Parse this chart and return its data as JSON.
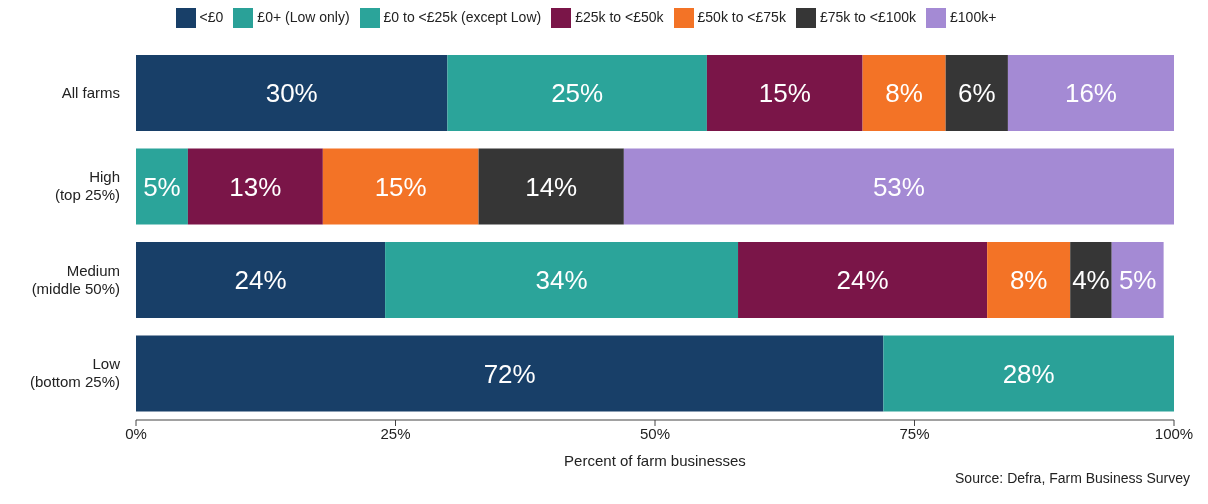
{
  "chart_data": {
    "type": "bar",
    "orientation": "horizontal",
    "stacked": true,
    "categories": [
      "All farms",
      "High\n(top 25%)",
      "Medium\n(middle 50%)",
      "Low\n(bottom 25%)"
    ],
    "series": [
      {
        "name": "<£0",
        "color": "#183f68",
        "values": [
          30,
          null,
          24,
          72
        ],
        "value_labels": [
          "30%",
          null,
          "24%",
          "72%"
        ]
      },
      {
        "name": "£0+ (Low only)",
        "color": "#2aa198",
        "values": [
          null,
          null,
          null,
          28
        ],
        "value_labels": [
          null,
          null,
          null,
          "28%"
        ]
      },
      {
        "name": "£0 to <£25k (except Low)",
        "color": "#2ba49a",
        "values": [
          25,
          5,
          34,
          null
        ],
        "value_labels": [
          "25%",
          "5%",
          "34%",
          null
        ]
      },
      {
        "name": "£25k to <£50k",
        "color": "#7a1548",
        "values": [
          15,
          13,
          24,
          null
        ],
        "value_labels": [
          "15%",
          "13%",
          "24%",
          null
        ]
      },
      {
        "name": "£50k to <£75k",
        "color": "#f37326",
        "values": [
          8,
          15,
          8,
          null
        ],
        "value_labels": [
          "8%",
          "15%",
          "8%",
          null
        ]
      },
      {
        "name": "£75k to <£100k",
        "color": "#363636",
        "values": [
          6,
          14,
          4,
          null
        ],
        "value_labels": [
          "6%",
          "14%",
          "4%",
          null
        ]
      },
      {
        "name": "£100k+",
        "color": "#a48ad4",
        "values": [
          16,
          53,
          5,
          null
        ],
        "value_labels": [
          "16%",
          "53%",
          "5%",
          null
        ]
      }
    ],
    "xlim": [
      0,
      100
    ],
    "xticks": [
      {
        "value": 0,
        "label": "0%"
      },
      {
        "value": 25,
        "label": "25%"
      },
      {
        "value": 50,
        "label": "50%"
      },
      {
        "value": 75,
        "label": "75%"
      },
      {
        "value": 100,
        "label": "100%"
      }
    ],
    "xlabel": "Percent of farm businesses",
    "legend": "top",
    "grid": false,
    "annotations": [
      "Source: Defra, Farm Business Survey"
    ]
  }
}
